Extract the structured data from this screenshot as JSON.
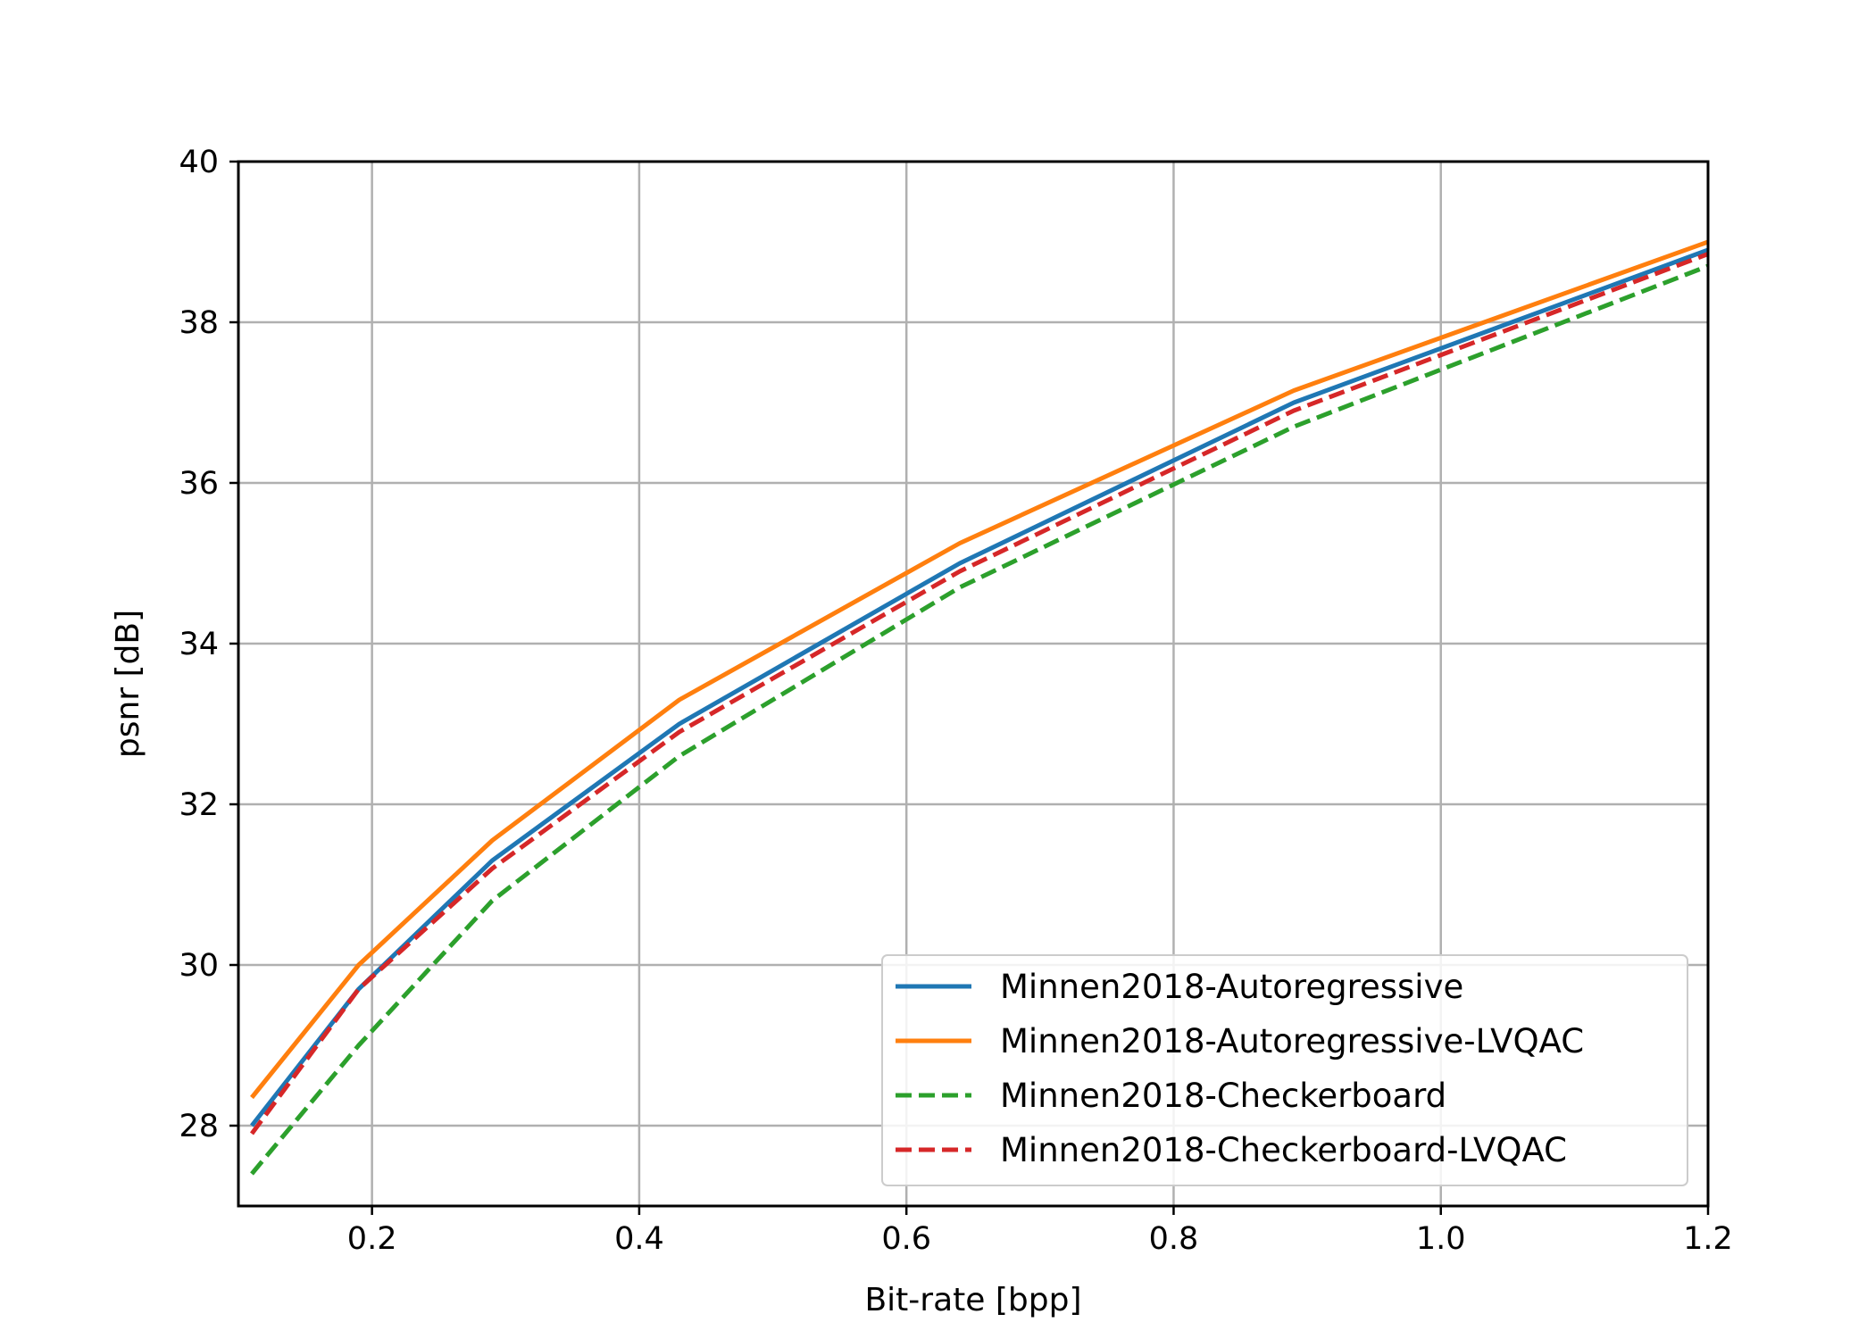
{
  "chart_data": {
    "type": "line",
    "title": "",
    "xlabel": "Bit-rate [bpp]",
    "ylabel": "psnr [dB]",
    "xlim": [
      0.1,
      1.2
    ],
    "ylim": [
      27.0,
      40.0
    ],
    "xticks": [
      0.2,
      0.4,
      0.6,
      0.8,
      1.0,
      1.2
    ],
    "xtick_labels": [
      "0.2",
      "0.4",
      "0.6",
      "0.8",
      "1.0",
      "1.2"
    ],
    "yticks": [
      28,
      30,
      32,
      34,
      36,
      38,
      40
    ],
    "ytick_labels": [
      "28",
      "30",
      "32",
      "34",
      "36",
      "38",
      "40"
    ],
    "grid": true,
    "legend_position": "lower-right",
    "series": [
      {
        "name": "Minnen2018-Autoregressive",
        "color": "#1f77b4",
        "style": "solid",
        "x": [
          0.11,
          0.19,
          0.29,
          0.43,
          0.64,
          0.89,
          1.2
        ],
        "y": [
          28.0,
          29.7,
          31.3,
          33.0,
          35.0,
          37.0,
          38.9
        ]
      },
      {
        "name": "Minnen2018-Autoregressive-LVQAC",
        "color": "#ff7f0e",
        "style": "solid",
        "x": [
          0.11,
          0.19,
          0.29,
          0.43,
          0.64,
          0.89,
          1.2
        ],
        "y": [
          28.35,
          30.0,
          31.55,
          33.3,
          35.25,
          37.15,
          39.0
        ]
      },
      {
        "name": "Minnen2018-Checkerboard",
        "color": "#2ca02c",
        "style": "dashed",
        "x": [
          0.11,
          0.19,
          0.29,
          0.43,
          0.64,
          0.89,
          1.2
        ],
        "y": [
          27.4,
          29.0,
          30.8,
          32.6,
          34.7,
          36.7,
          38.7
        ]
      },
      {
        "name": "Minnen2018-Checkerboard-LVQAC",
        "color": "#d62728",
        "style": "dashed",
        "x": [
          0.11,
          0.19,
          0.29,
          0.43,
          0.64,
          0.89,
          1.2
        ],
        "y": [
          27.9,
          29.7,
          31.2,
          32.9,
          34.9,
          36.9,
          38.85
        ]
      }
    ]
  }
}
